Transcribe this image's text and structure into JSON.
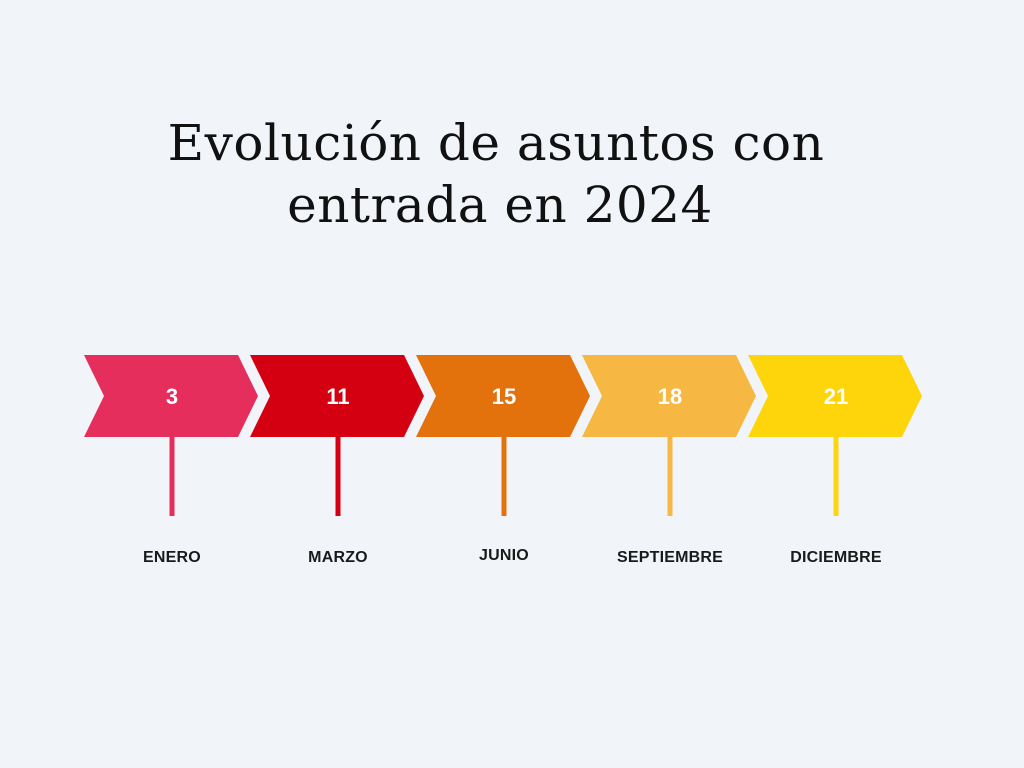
{
  "title": {
    "line1": "Evolución de asuntos con",
    "line2": "entrada en 2024"
  },
  "timeline": [
    {
      "value": "3",
      "month": "ENERO",
      "color": "#e52e5c"
    },
    {
      "value": "11",
      "month": "MARZO",
      "color": "#d40012"
    },
    {
      "value": "15",
      "month": "JUNIO",
      "color": "#e3710c"
    },
    {
      "value": "18",
      "month": "SEPTIEMBRE",
      "color": "#f6b843"
    },
    {
      "value": "21",
      "month": "DICIEMBRE",
      "color": "#fed40a"
    }
  ]
}
